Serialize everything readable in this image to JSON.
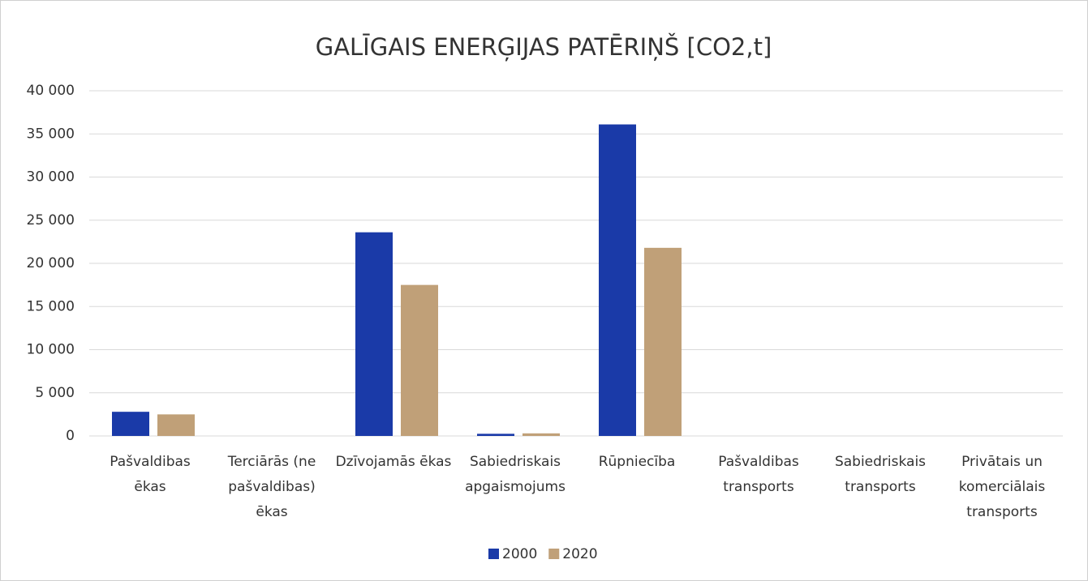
{
  "chart_data": {
    "type": "bar",
    "title": "GALĪGAIS ENERĢIJAS PATĒRIŅŠ [CO2,t]",
    "categories": [
      "Pašvaldibas ēkas",
      "Terciārās (ne pašvaldibas) ēkas",
      "Dzīvojamās ēkas",
      "Sabiedriskais apgaismojums",
      "Rūpniecība",
      "Pašvaldibas transports",
      "Sabiedriskais transports",
      "Privātais un komerciālais transports"
    ],
    "series": [
      {
        "name": "2000",
        "color": "#1a3aa8",
        "values": [
          2800,
          0,
          23600,
          250,
          36100,
          0,
          0,
          0
        ]
      },
      {
        "name": "2020",
        "color": "#c0a078",
        "values": [
          2500,
          0,
          17500,
          300,
          21800,
          0,
          0,
          0
        ]
      }
    ],
    "ylim": [
      0,
      40000
    ],
    "yticks": [
      0,
      {
        "value": 5000,
        "label": "5 000"
      },
      {
        "value": 10000,
        "label": "10 000"
      },
      {
        "value": 15000,
        "label": "15 000"
      },
      {
        "value": 20000,
        "label": "20 000"
      },
      {
        "value": 25000,
        "label": "25 000"
      },
      {
        "value": 30000,
        "label": "30 000"
      },
      {
        "value": 35000,
        "label": "35 000"
      },
      {
        "value": 40000,
        "label": "40 000"
      }
    ],
    "grid": true,
    "legend": "bottom"
  }
}
